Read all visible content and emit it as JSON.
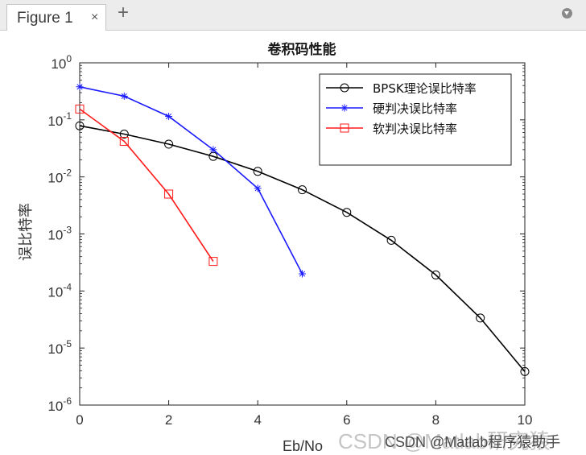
{
  "window": {
    "tab_label": "Figure 1",
    "tab_close": "×",
    "tab_add": "+"
  },
  "watermark": {
    "large": "CSDN @Matlab研究猿",
    "small": "CSDN @Matlab程序猿助手"
  },
  "colors": {
    "theory": "#000000",
    "hard": "#1a1aff",
    "soft": "#ff1a1a"
  },
  "chart_data": {
    "type": "line",
    "title": "卷积码性能",
    "xlabel": "Eb/No",
    "ylabel": "误比特率",
    "xlim": [
      0,
      10
    ],
    "ylim": [
      1e-06,
      1
    ],
    "yscale": "log",
    "xticks": [
      0,
      2,
      4,
      6,
      8,
      10
    ],
    "xtick_labels": [
      "0",
      "2",
      "4",
      "6",
      "8",
      "10"
    ],
    "yticks": [
      {
        "value": 1,
        "base": "10",
        "exp": "0"
      },
      {
        "value": 0.1,
        "base": "10",
        "exp": "-1"
      },
      {
        "value": 0.01,
        "base": "10",
        "exp": "-2"
      },
      {
        "value": 0.001,
        "base": "10",
        "exp": "-3"
      },
      {
        "value": 0.0001,
        "base": "10",
        "exp": "-4"
      },
      {
        "value": 1e-05,
        "base": "10",
        "exp": "-5"
      },
      {
        "value": 1e-06,
        "base": "10",
        "exp": "-6"
      }
    ],
    "grid": false,
    "legend_position": "top-right",
    "series": [
      {
        "name": "BPSK理论误比特率",
        "color": "#000000",
        "marker": "circle",
        "x": [
          0,
          1,
          2,
          3,
          4,
          5,
          6,
          7,
          8,
          9,
          10
        ],
        "y": [
          0.0786,
          0.0563,
          0.0375,
          0.0229,
          0.0125,
          0.00595,
          0.00239,
          0.000773,
          0.000191,
          3.36e-05,
          3.87e-06
        ]
      },
      {
        "name": "硬判决误比特率",
        "color": "#1a1aff",
        "marker": "star",
        "x": [
          0,
          1,
          2,
          3,
          4,
          5
        ],
        "y": [
          0.38,
          0.26,
          0.115,
          0.03,
          0.0063,
          0.0002
        ]
      },
      {
        "name": "软判决误比特率",
        "color": "#ff1a1a",
        "marker": "square",
        "x": [
          0,
          1,
          2,
          3
        ],
        "y": [
          0.155,
          0.042,
          0.005,
          0.00033
        ]
      }
    ]
  }
}
